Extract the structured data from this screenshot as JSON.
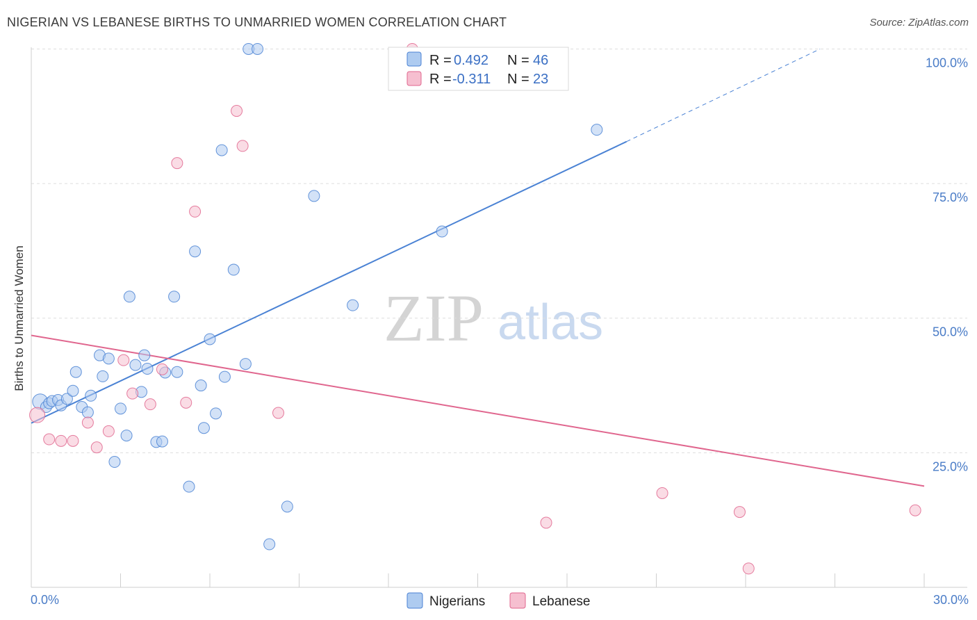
{
  "title": "NIGERIAN VS LEBANESE BIRTHS TO UNMARRIED WOMEN CORRELATION CHART",
  "source": "Source: ZipAtlas.com",
  "watermark": {
    "zip": "ZIP",
    "atlas": "atlas"
  },
  "colors": {
    "nigerians": "#4a82d4",
    "nigerians_fill": "#aecbf0",
    "lebanese": "#e0668e",
    "lebanese_fill": "#f6bfd0",
    "tick_text": "#4a7cc7",
    "grid": "#dedede"
  },
  "legend": {
    "rows": [
      {
        "r_label": "R =",
        "r_value": "0.492",
        "n_label": "N =",
        "n_value": "46"
      },
      {
        "r_label": "R =",
        "r_value": "-0.311",
        "n_label": "N =",
        "n_value": "23"
      }
    ]
  },
  "bottom_legend": {
    "nigerians": "Nigerians",
    "lebanese": "Lebanese"
  },
  "chart_data": {
    "type": "scatter",
    "title": "NIGERIAN VS LEBANESE BIRTHS TO UNMARRIED WOMEN CORRELATION CHART",
    "xlabel": "",
    "ylabel": "Births to Unmarried Women",
    "xlim": [
      0,
      30
    ],
    "ylim": [
      0,
      102
    ],
    "x_tick_labels": [
      "0.0%",
      "30.0%"
    ],
    "y_ticks": [
      25,
      50,
      75,
      100
    ],
    "y_tick_labels": [
      "25.0%",
      "50.0%",
      "75.0%",
      "100.0%"
    ],
    "grid": true,
    "legend_position": "top-center",
    "series": [
      {
        "name": "Nigerians",
        "points": [
          [
            0.3,
            34.5
          ],
          [
            0.5,
            33.5
          ],
          [
            0.6,
            34.2
          ],
          [
            0.7,
            34.6
          ],
          [
            0.9,
            34.8
          ],
          [
            1.0,
            33.8
          ],
          [
            1.2,
            35.0
          ],
          [
            1.4,
            36.5
          ],
          [
            1.5,
            40.0
          ],
          [
            1.7,
            33.5
          ],
          [
            1.9,
            32.5
          ],
          [
            2.0,
            35.6
          ],
          [
            2.4,
            39.2
          ],
          [
            2.3,
            43.1
          ],
          [
            2.6,
            42.5
          ],
          [
            2.8,
            23.3
          ],
          [
            3.0,
            33.2
          ],
          [
            3.2,
            28.2
          ],
          [
            3.3,
            54.0
          ],
          [
            3.5,
            41.3
          ],
          [
            3.7,
            36.3
          ],
          [
            3.8,
            43.1
          ],
          [
            3.9,
            40.6
          ],
          [
            4.2,
            27.0
          ],
          [
            4.4,
            27.1
          ],
          [
            4.5,
            39.9
          ],
          [
            4.8,
            54.0
          ],
          [
            4.9,
            40.0
          ],
          [
            5.3,
            18.7
          ],
          [
            5.5,
            62.4
          ],
          [
            5.7,
            37.5
          ],
          [
            5.8,
            29.6
          ],
          [
            6.0,
            46.1
          ],
          [
            6.2,
            32.3
          ],
          [
            6.4,
            81.2
          ],
          [
            6.5,
            39.1
          ],
          [
            6.8,
            59.0
          ],
          [
            7.2,
            41.5
          ],
          [
            7.3,
            100.0
          ],
          [
            7.6,
            100.0
          ],
          [
            8.0,
            8.0
          ],
          [
            8.6,
            15.0
          ],
          [
            9.5,
            72.7
          ],
          [
            10.8,
            52.4
          ],
          [
            13.8,
            66.1
          ],
          [
            19.0,
            85.0
          ]
        ],
        "trend": {
          "x0": 0,
          "y0": 30.5,
          "x1": 20.0,
          "y1": 82.8,
          "dashed_to_x": 26.5,
          "dashed_to_y": 100.0
        }
      },
      {
        "name": "Lebanese",
        "points": [
          [
            0.2,
            32.0
          ],
          [
            0.6,
            27.5
          ],
          [
            1.0,
            27.2
          ],
          [
            1.4,
            27.2
          ],
          [
            1.9,
            30.6
          ],
          [
            2.2,
            26.0
          ],
          [
            2.6,
            29.0
          ],
          [
            3.1,
            42.2
          ],
          [
            3.4,
            36.0
          ],
          [
            4.0,
            34.0
          ],
          [
            4.4,
            40.5
          ],
          [
            4.9,
            78.8
          ],
          [
            5.2,
            34.3
          ],
          [
            5.5,
            69.8
          ],
          [
            6.9,
            88.5
          ],
          [
            7.1,
            82.0
          ],
          [
            8.3,
            32.4
          ],
          [
            12.8,
            100.0
          ],
          [
            17.3,
            12.0
          ],
          [
            21.2,
            17.5
          ],
          [
            23.8,
            14.0
          ],
          [
            24.1,
            3.5
          ],
          [
            29.7,
            14.3
          ]
        ],
        "trend": {
          "x0": 0,
          "y0": 46.8,
          "x1": 30.0,
          "y1": 18.8
        }
      }
    ]
  }
}
